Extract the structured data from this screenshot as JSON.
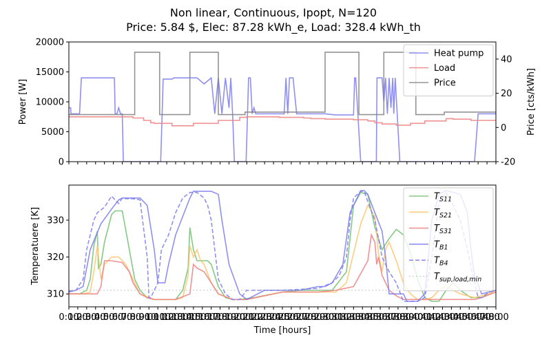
{
  "figure": {
    "title_line1": "Non linear, Continuous, Ipopt, N=120",
    "title_line2": "Price: 5.84 $, Elec: 87.28 kWh_e, Load: 328.4 kWh_th"
  },
  "chart_data": [
    {
      "type": "line",
      "xlabel": "",
      "ylabel": "Power [W]",
      "ylabel_right": "Price [cts/kWh]",
      "xlim": [
        0,
        120
      ],
      "ylim": [
        0,
        20000
      ],
      "ylim_right": [
        -20,
        50
      ],
      "yticks": [
        0,
        5000,
        10000,
        15000,
        20000
      ],
      "yticks_right": [
        -20,
        0,
        20,
        40
      ],
      "legend_position": "top-right",
      "colors": {
        "heat_pump": "#7b7bf0",
        "load": "#ef7f7f",
        "price": "#808080"
      },
      "series": [
        {
          "name": "Heat pump",
          "axis": "left",
          "x": [
            0,
            0.5,
            0.6,
            3,
            3.5,
            12.5,
            12.8,
            13,
            13.5,
            14,
            14.5,
            15,
            15.3,
            15.7,
            25.8,
            26.5,
            29,
            29.5,
            35,
            36,
            38,
            40,
            41,
            42,
            43,
            44,
            45,
            45.5,
            46,
            46.5,
            47,
            47.5,
            48,
            48.5,
            49.8,
            50.5,
            51,
            51.5,
            52,
            52.5,
            53,
            53.5,
            54,
            60,
            60.5,
            61,
            61.5,
            62,
            62.5,
            63,
            64,
            64.5,
            70,
            70.5,
            72,
            75,
            77,
            80,
            80.3,
            80.6,
            82,
            82.4,
            84,
            86.4,
            86.6,
            87,
            87.5,
            88,
            88.5,
            89,
            89.5,
            90,
            90.5,
            91,
            91.3,
            91.7,
            93,
            93.3,
            94,
            101.7,
            102.2,
            103,
            103.2,
            104,
            104.5,
            105,
            105.5,
            106,
            106.4,
            114,
            115,
            115.5,
            120
          ],
          "y": [
            9000,
            9000,
            8000,
            8000,
            14000,
            14000,
            14000,
            8000,
            8000,
            9000,
            8000,
            8000,
            0,
            0,
            0,
            13800,
            13800,
            14000,
            14000,
            14000,
            13000,
            14000,
            8000,
            14000,
            8000,
            14000,
            9000,
            14000,
            8000,
            0,
            0,
            0,
            0,
            0,
            0,
            14000,
            14000,
            8000,
            9000,
            8000,
            8000,
            8000,
            8000,
            8000,
            8000,
            14000,
            8000,
            14000,
            14000,
            14000,
            8000,
            8000,
            8000,
            8000,
            8000,
            7800,
            7800,
            7800,
            14000,
            14000,
            0,
            0,
            0,
            0,
            14000,
            14000,
            14000,
            14000,
            10000,
            14000,
            8000,
            14000,
            9000,
            14000,
            8000,
            14000,
            0,
            0,
            0,
            0,
            0,
            0,
            0,
            0,
            0,
            0,
            0,
            0,
            0,
            0,
            8000,
            8000,
            8000
          ]
        },
        {
          "name": "Load",
          "axis": "left",
          "x": [
            0,
            18,
            18,
            21,
            21,
            23,
            23,
            24,
            24,
            29,
            29,
            35,
            35,
            42,
            42,
            48,
            48,
            50,
            50,
            59,
            59,
            66,
            66,
            68,
            68,
            72,
            72,
            80,
            80,
            84,
            84,
            86,
            86,
            88,
            88,
            92,
            92,
            96,
            96,
            100,
            100,
            106,
            106,
            108,
            108,
            113,
            113,
            120
          ],
          "y": [
            7500,
            7500,
            7300,
            7300,
            6900,
            6900,
            6500,
            6500,
            6400,
            6400,
            6000,
            6000,
            6400,
            6400,
            6900,
            6900,
            7400,
            7400,
            7500,
            7500,
            7400,
            7400,
            7300,
            7300,
            7200,
            7200,
            7100,
            7100,
            7000,
            7000,
            6800,
            6800,
            6500,
            6500,
            6300,
            6300,
            6100,
            6100,
            6400,
            6400,
            6800,
            6800,
            7200,
            7200,
            7100,
            7100,
            6900,
            6900
          ]
        },
        {
          "name": "Price",
          "axis": "right",
          "x": [
            0,
            18.5,
            18.5,
            25.5,
            25.5,
            34,
            34,
            42,
            42,
            49.5,
            49.5,
            72,
            72,
            81.5,
            81.5,
            88.5,
            88.5,
            97.5,
            97.5,
            105.5,
            105.5,
            120
          ],
          "y": [
            7.5,
            7.5,
            44,
            44,
            7.5,
            7.5,
            44,
            44,
            7.5,
            7.5,
            9,
            9,
            44,
            44,
            7.5,
            7.5,
            44,
            44,
            7.5,
            7.5,
            9,
            9
          ]
        }
      ]
    },
    {
      "type": "line",
      "xlabel": "Time [hours]",
      "ylabel": "Temperatuere [K]",
      "xlim": [
        0,
        120
      ],
      "ylim": [
        306.5,
        339.5
      ],
      "yticks": [
        310,
        320,
        330
      ],
      "xtick_labels": [
        "0:00",
        "1:00",
        "2:00",
        "3:00",
        "4:00",
        "5:00",
        "6:00",
        "7:00",
        "8:00",
        "9:00",
        "10:00",
        "11:00",
        "12:00",
        "13:00",
        "14:00",
        "15:00",
        "16:00",
        "17:00",
        "18:00",
        "19:00",
        "20:00",
        "21:00",
        "22:00",
        "23:00",
        "24:00",
        "25:00",
        "26:00",
        "27:00",
        "28:00",
        "29:00",
        "30:00",
        "31:00",
        "32:00",
        "33:00",
        "34:00",
        "35:00",
        "36:00",
        "37:00",
        "38:00",
        "39:00",
        "40:00",
        "41:00",
        "42:00",
        "43:00",
        "44:00",
        "45:00",
        "46:00",
        "47:00",
        "48:00"
      ],
      "legend_position": "top-right",
      "colors": {
        "ts11": "#6fbf6f",
        "ts21": "#ffc46b",
        "ts31": "#ef7f7f",
        "tb1": "#7b7bf0",
        "tb4": "#7b7bf0",
        "tsup": "#bbbbbb"
      },
      "series": [
        {
          "name": "$T_{S11}$",
          "legend": {
            "base": "T",
            "sub": "S11"
          },
          "x": [
            0,
            3,
            5,
            6,
            7,
            8,
            8.3,
            9,
            10,
            12,
            13,
            15,
            17,
            18.5,
            20,
            22,
            24,
            27,
            30,
            32,
            33.5,
            34,
            35,
            36,
            37,
            38,
            39,
            40,
            42,
            44,
            46,
            48,
            52,
            60,
            65,
            68,
            71,
            74,
            78,
            79,
            80,
            82,
            84,
            86,
            88,
            90,
            92,
            94,
            96,
            98,
            100,
            102,
            104,
            106,
            108,
            110,
            113,
            116,
            118,
            120
          ],
          "y": [
            310,
            310,
            311,
            314,
            323,
            327,
            317,
            318,
            324,
            331.5,
            332.5,
            332.5,
            322,
            314,
            311,
            309,
            308.5,
            308.5,
            308.5,
            311,
            317,
            328,
            322,
            319,
            319,
            319,
            319,
            318,
            312,
            309,
            308.5,
            308.5,
            309,
            310.5,
            311,
            311,
            311,
            311,
            316,
            325,
            334,
            337.5,
            337,
            328,
            322,
            325,
            327.5,
            326,
            321,
            314,
            309,
            308,
            308,
            311,
            313,
            311,
            309,
            309,
            310,
            311
          ]
        },
        {
          "name": "$T_{S21}$",
          "legend": {
            "base": "T",
            "sub": "S21"
          },
          "x": [
            0,
            4,
            6,
            7,
            8,
            9,
            10,
            12,
            14,
            16,
            18,
            20,
            24,
            30,
            32,
            33.5,
            34,
            35,
            36,
            37,
            38,
            40,
            42,
            46,
            50,
            60,
            70,
            75,
            78,
            80,
            82,
            84,
            86,
            87,
            88,
            89,
            90,
            92,
            94,
            96,
            98,
            100,
            102,
            104,
            106,
            110,
            114,
            118,
            120
          ],
          "y": [
            310,
            310,
            310.5,
            316,
            323,
            314,
            318,
            320,
            320,
            318,
            314,
            310,
            308.5,
            308.5,
            309,
            315,
            323,
            320,
            322,
            319,
            318,
            313,
            310,
            308.5,
            308.5,
            310.5,
            310.5,
            310.5,
            313,
            321,
            329,
            334,
            331,
            321,
            316,
            322,
            324,
            319,
            313,
            310,
            308.5,
            308.5,
            309,
            311,
            312,
            310,
            309,
            310,
            311
          ]
        },
        {
          "name": "$T_{S31}$",
          "legend": {
            "base": "T",
            "sub": "S31"
          },
          "x": [
            0,
            8,
            9,
            10,
            12,
            15,
            17,
            18,
            20,
            22,
            24,
            30,
            34,
            35,
            36,
            38,
            40,
            42,
            46,
            50,
            60,
            70,
            75,
            80,
            84,
            85,
            86,
            86.5,
            87,
            88,
            90,
            92,
            94,
            96,
            100,
            106,
            110,
            114,
            116,
            120
          ],
          "y": [
            310,
            310,
            312,
            319,
            319,
            318.5,
            316,
            313,
            310,
            309,
            308.5,
            308.5,
            310,
            318,
            317,
            316,
            313,
            310,
            308.5,
            308.5,
            310.5,
            310.5,
            311,
            312,
            319,
            326,
            324,
            318,
            320,
            315,
            311,
            309.5,
            308.5,
            308.5,
            308.5,
            308.5,
            308.5,
            308.5,
            309,
            310.5
          ]
        },
        {
          "name": "$T_{B1}$",
          "legend": {
            "base": "T",
            "sub": "B1"
          },
          "x": [
            0,
            2,
            4,
            6,
            9,
            12,
            14,
            15,
            20,
            22,
            24,
            25,
            27,
            28,
            30,
            32,
            34,
            35,
            38,
            40,
            42,
            43,
            45,
            48,
            50,
            55,
            60,
            65,
            70,
            72,
            74,
            77,
            79,
            82,
            83,
            84,
            86,
            88,
            89,
            90,
            92,
            94,
            95,
            96,
            98,
            100,
            102,
            104,
            106,
            110,
            112,
            113,
            114,
            116,
            118,
            120
          ],
          "y": [
            310.5,
            311,
            312,
            322,
            329,
            333,
            335.5,
            336,
            336,
            334,
            322,
            313,
            313,
            318,
            326,
            331,
            336,
            337.8,
            337.8,
            337.8,
            337,
            330,
            318,
            310,
            308.5,
            311,
            311,
            311,
            312,
            312,
            313,
            318,
            332,
            338,
            338,
            337,
            332,
            327,
            320,
            310,
            310,
            310,
            308,
            308,
            308,
            310,
            330,
            337,
            338,
            337,
            332,
            322,
            315,
            310,
            310.5,
            311
          ]
        },
        {
          "name": "$T_{B4}$",
          "legend": {
            "base": "T",
            "sub": "B4"
          },
          "x": [
            0,
            2,
            4,
            5,
            7,
            8,
            10,
            12,
            14,
            15,
            16,
            18,
            20,
            22,
            22.5,
            23,
            25,
            26,
            28,
            30,
            31,
            32,
            34,
            36,
            38,
            39,
            40,
            41,
            42,
            44,
            46,
            48,
            50,
            60,
            70,
            74,
            76,
            78,
            79,
            80,
            82,
            83,
            84,
            86,
            88,
            90,
            92,
            94,
            96,
            98,
            100,
            102,
            104,
            106,
            108,
            110,
            112,
            114,
            115,
            116,
            118,
            120
          ],
          "y": [
            310.8,
            311,
            314,
            322,
            330,
            332,
            333.5,
            336.5,
            334.5,
            336,
            335.8,
            335.8,
            335.5,
            320,
            309,
            309,
            313,
            322,
            326,
            332,
            334,
            336,
            337.5,
            337.5,
            336,
            334,
            330,
            322,
            314,
            310,
            308.5,
            308.5,
            311,
            311,
            311.5,
            313,
            315,
            320,
            330,
            336,
            337.8,
            337.8,
            335,
            330,
            320,
            316,
            313,
            308,
            308,
            308,
            309,
            320,
            335,
            337.5,
            334,
            330,
            322,
            313,
            309,
            309,
            310.5,
            311
          ]
        },
        {
          "name": "$T_{sup,load,min}$",
          "legend": {
            "base": "T",
            "sub": "sup,load,min"
          },
          "x": [
            0,
            120
          ],
          "y": [
            311,
            311
          ]
        }
      ]
    }
  ]
}
